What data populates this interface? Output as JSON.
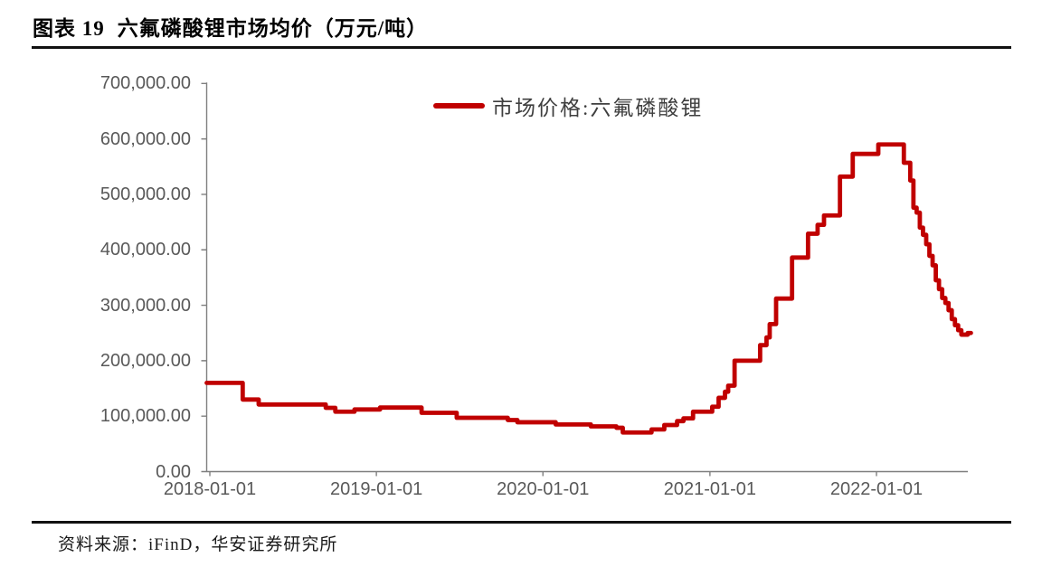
{
  "page": {
    "title_prefix": "图表 19",
    "title_text": "六氟磷酸锂市场均价（万元/吨）",
    "source_label": "资料来源：iFinD，华安证券研究所"
  },
  "chart_data": {
    "type": "line",
    "subtype": "step-after",
    "title": "六氟磷酸锂市场均价（万元/吨）",
    "grid": false,
    "legend_position": "top-center",
    "axis_color": "#7f7f7f",
    "label_color": "#595959",
    "x_axis": {
      "ticks": [
        "2018-01-01",
        "2019-01-01",
        "2020-01-01",
        "2021-01-01",
        "2022-01-01"
      ]
    },
    "y_axis": {
      "min": 0,
      "max": 700000,
      "step": 100000,
      "tick_labels": [
        "0.00",
        "100,000.00",
        "200,000.00",
        "300,000.00",
        "400,000.00",
        "500,000.00",
        "600,000.00",
        "700,000.00"
      ]
    },
    "series": [
      {
        "name": "市场价格:六氟磷酸锂",
        "color": "#C00000",
        "points": [
          [
            "2018-01-01",
            160000
          ],
          [
            "2018-03-14",
            130000
          ],
          [
            "2018-04-18",
            121000
          ],
          [
            "2018-09-12",
            115000
          ],
          [
            "2018-10-03",
            108000
          ],
          [
            "2018-11-14",
            112000
          ],
          [
            "2019-01-09",
            115500
          ],
          [
            "2019-04-10",
            106000
          ],
          [
            "2019-06-26",
            97000
          ],
          [
            "2019-10-16",
            93000
          ],
          [
            "2019-11-06",
            89000
          ],
          [
            "2020-01-29",
            85000
          ],
          [
            "2020-04-15",
            81500
          ],
          [
            "2020-06-10",
            79000
          ],
          [
            "2020-06-24",
            70500
          ],
          [
            "2020-08-26",
            76000
          ],
          [
            "2020-09-23",
            84000
          ],
          [
            "2020-10-21",
            91000
          ],
          [
            "2020-11-04",
            96000
          ],
          [
            "2020-11-25",
            108000
          ],
          [
            "2021-01-06",
            117000
          ],
          [
            "2021-01-20",
            133000
          ],
          [
            "2021-02-03",
            144000
          ],
          [
            "2021-02-10",
            155000
          ],
          [
            "2021-02-24",
            200000
          ],
          [
            "2021-04-21",
            228000
          ],
          [
            "2021-05-05",
            242000
          ],
          [
            "2021-05-12",
            266000
          ],
          [
            "2021-05-26",
            312000
          ],
          [
            "2021-06-30",
            386000
          ],
          [
            "2021-08-04",
            429000
          ],
          [
            "2021-08-25",
            445000
          ],
          [
            "2021-09-08",
            462000
          ],
          [
            "2021-10-13",
            532000
          ],
          [
            "2021-11-10",
            573000
          ],
          [
            "2022-01-05",
            590000
          ],
          [
            "2022-03-02",
            557000
          ],
          [
            "2022-03-16",
            525000
          ],
          [
            "2022-03-23",
            476000
          ],
          [
            "2022-03-30",
            467000
          ],
          [
            "2022-04-06",
            440000
          ],
          [
            "2022-04-13",
            427000
          ],
          [
            "2022-04-20",
            410000
          ],
          [
            "2022-04-27",
            389000
          ],
          [
            "2022-05-04",
            372000
          ],
          [
            "2022-05-11",
            345000
          ],
          [
            "2022-05-18",
            329000
          ],
          [
            "2022-05-25",
            313000
          ],
          [
            "2022-06-01",
            304000
          ],
          [
            "2022-06-08",
            291000
          ],
          [
            "2022-06-15",
            275000
          ],
          [
            "2022-06-22",
            264000
          ],
          [
            "2022-06-29",
            255000
          ],
          [
            "2022-07-06",
            247000
          ],
          [
            "2022-07-20",
            250000
          ],
          [
            "2022-07-27",
            250000
          ]
        ]
      }
    ]
  }
}
